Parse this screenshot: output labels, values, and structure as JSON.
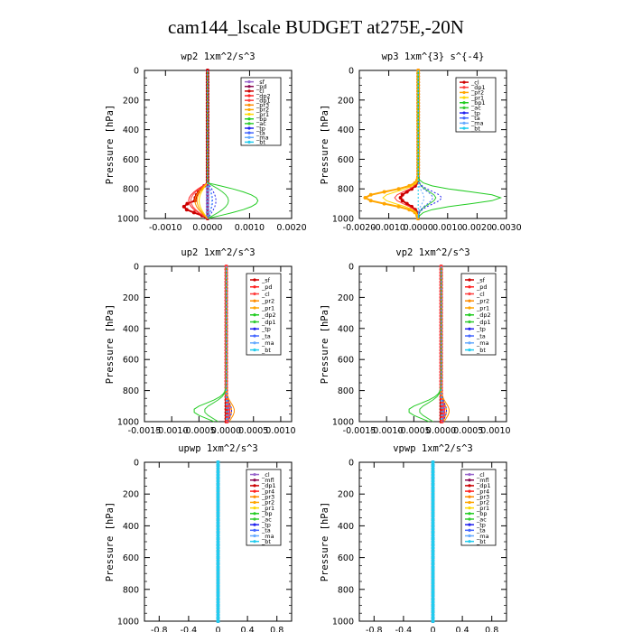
{
  "figure": {
    "title": "cam144_lscale  BUDGET at275E,-20N"
  },
  "chart_data": [
    {
      "type": "line",
      "title": "wp2   1xm^2/s^3",
      "ylabel": "Pressure [hPa]",
      "ylim": [
        1000,
        0
      ],
      "xlim": [
        -0.0015,
        0.002
      ],
      "xticks": [
        -0.001,
        0.0,
        0.001,
        0.002
      ],
      "xticklabels": [
        "-0.0010",
        "0.0000",
        "0.0010",
        "0.0020"
      ],
      "yticks": [
        0,
        200,
        400,
        600,
        800,
        1000
      ],
      "legend": "top-right",
      "series": [
        {
          "name": "_sf",
          "color": "#9966cc",
          "marker": "star"
        },
        {
          "name": "_pd",
          "color": "#8b0a50",
          "marker": "star"
        },
        {
          "name": "_cl",
          "color": "#cc0000",
          "marker": "star"
        },
        {
          "name": "_dp2",
          "color": "#ff2020",
          "marker": "star"
        },
        {
          "name": "_dp1",
          "color": "#ff4040",
          "marker": "star"
        },
        {
          "name": "_pr3",
          "color": "#ff8c00",
          "marker": "star"
        },
        {
          "name": "_pr2",
          "color": "#ffa500",
          "marker": "star"
        },
        {
          "name": "_pr1",
          "color": "#ffd700",
          "marker": "star"
        },
        {
          "name": "_bp",
          "color": "#22cc22",
          "marker": "star"
        },
        {
          "name": "_ac",
          "color": "#33cc33",
          "marker": "star"
        },
        {
          "name": "_tp",
          "color": "#2222ee",
          "marker": "star"
        },
        {
          "name": "_ta",
          "color": "#4466ff",
          "marker": "star"
        },
        {
          "name": "_ma",
          "color": "#66aaff",
          "marker": "star"
        },
        {
          "name": "_bt",
          "color": "#22ccee",
          "marker": "circle"
        }
      ]
    },
    {
      "type": "line",
      "title": "wp3   1xm^{3} s^{-4}",
      "ylabel": "Pressure [hPa]",
      "ylim": [
        1000,
        0
      ],
      "xlim": [
        -0.002,
        0.003
      ],
      "xticks": [
        -0.002,
        -0.001,
        0.0,
        0.001,
        0.002,
        0.003
      ],
      "xticklabels": [
        "-0.0020",
        "-0.0010",
        "0.0000",
        "0.0010",
        "0.0020",
        "0.0030"
      ],
      "yticks": [
        0,
        200,
        400,
        600,
        800,
        1000
      ],
      "legend": "top-right",
      "series": [
        {
          "name": "_cl",
          "color": "#cc0000",
          "marker": "star"
        },
        {
          "name": "_dp1",
          "color": "#ff4040",
          "marker": "star"
        },
        {
          "name": "_pr2",
          "color": "#ffa500",
          "marker": "star"
        },
        {
          "name": "_pr1",
          "color": "#ffd700",
          "marker": "star"
        },
        {
          "name": "_bp1",
          "color": "#22cc22",
          "marker": "star"
        },
        {
          "name": "_ac",
          "color": "#33cc33",
          "marker": "star"
        },
        {
          "name": "_tp",
          "color": "#2222ee",
          "marker": "star"
        },
        {
          "name": "_ta",
          "color": "#4466ff",
          "marker": "star"
        },
        {
          "name": "_ma",
          "color": "#66aaff",
          "marker": "star"
        },
        {
          "name": "_bt",
          "color": "#22ccee",
          "marker": "circle"
        }
      ]
    },
    {
      "type": "line",
      "title": "up2   1xm^2/s^3",
      "ylabel": "Pressure [hPa]",
      "ylim": [
        1000,
        0
      ],
      "xlim": [
        -0.0015,
        0.0012
      ],
      "xticks": [
        -0.0015,
        -0.001,
        -0.0005,
        0.0,
        0.0005,
        0.001
      ],
      "xticklabels": [
        "-0.0015",
        "-0.0010",
        "-0.0005",
        "0.0000",
        "0.0005",
        "0.0010"
      ],
      "yticks": [
        0,
        200,
        400,
        600,
        800,
        1000
      ],
      "legend": "top-right",
      "series": [
        {
          "name": "_sf",
          "color": "#cc0000",
          "marker": "star"
        },
        {
          "name": "_pd",
          "color": "#ff2020",
          "marker": "star"
        },
        {
          "name": "_cl",
          "color": "#ff4040",
          "marker": "star"
        },
        {
          "name": "_pr2",
          "color": "#ff8c00",
          "marker": "star"
        },
        {
          "name": "_pr1",
          "color": "#ffa500",
          "marker": "star"
        },
        {
          "name": "_dp2",
          "color": "#22cc22",
          "marker": "star"
        },
        {
          "name": "_dp1",
          "color": "#33cc33",
          "marker": "star"
        },
        {
          "name": "_tp",
          "color": "#2222ee",
          "marker": "star"
        },
        {
          "name": "_ta",
          "color": "#4466ff",
          "marker": "star"
        },
        {
          "name": "_ma",
          "color": "#66aaff",
          "marker": "star"
        },
        {
          "name": "_bt",
          "color": "#22ccee",
          "marker": "circle"
        }
      ]
    },
    {
      "type": "line",
      "title": "vp2   1xm^2/s^3",
      "ylabel": "Pressure [hPa]",
      "ylim": [
        1000,
        0
      ],
      "xlim": [
        -0.0015,
        0.0012
      ],
      "xticks": [
        -0.0015,
        -0.001,
        -0.0005,
        0.0,
        0.0005,
        0.001
      ],
      "xticklabels": [
        "-0.0015",
        "-0.0010",
        "-0.0005",
        "0.0000",
        "0.0005",
        "0.0010"
      ],
      "yticks": [
        0,
        200,
        400,
        600,
        800,
        1000
      ],
      "legend": "top-right",
      "series": [
        {
          "name": "_sf",
          "color": "#cc0000",
          "marker": "star"
        },
        {
          "name": "_pd",
          "color": "#ff2020",
          "marker": "star"
        },
        {
          "name": "_cl",
          "color": "#ff4040",
          "marker": "star"
        },
        {
          "name": "_pr2",
          "color": "#ff8c00",
          "marker": "star"
        },
        {
          "name": "_pr1",
          "color": "#ffa500",
          "marker": "star"
        },
        {
          "name": "_dp2",
          "color": "#22cc22",
          "marker": "star"
        },
        {
          "name": "_dp1",
          "color": "#33cc33",
          "marker": "star"
        },
        {
          "name": "_tp",
          "color": "#2222ee",
          "marker": "star"
        },
        {
          "name": "_ta",
          "color": "#4466ff",
          "marker": "star"
        },
        {
          "name": "_ma",
          "color": "#66aaff",
          "marker": "star"
        },
        {
          "name": "_bt",
          "color": "#22ccee",
          "marker": "circle"
        }
      ]
    },
    {
      "type": "line",
      "title": "upwp   1xm^2/s^3",
      "ylabel": "Pressure [hPa]",
      "ylim": [
        1000,
        0
      ],
      "xlim": [
        -1.0,
        1.0
      ],
      "xticks": [
        -0.8,
        -0.4,
        0.0,
        0.4,
        0.8
      ],
      "xticklabels": [
        "-0.8",
        "-0.4",
        "0",
        "0.4",
        "0.8"
      ],
      "yticks": [
        0,
        200,
        400,
        600,
        800,
        1000
      ],
      "legend": "top-right",
      "series": [
        {
          "name": "_cl",
          "color": "#9966cc",
          "marker": "star"
        },
        {
          "name": "_mfl",
          "color": "#8b0a50",
          "marker": "star"
        },
        {
          "name": "_dp1",
          "color": "#cc0000",
          "marker": "star"
        },
        {
          "name": "_pr4",
          "color": "#ff2020",
          "marker": "star"
        },
        {
          "name": "_pr3",
          "color": "#ff8c00",
          "marker": "star"
        },
        {
          "name": "_pr2",
          "color": "#ffa500",
          "marker": "star"
        },
        {
          "name": "_pr1",
          "color": "#ffd700",
          "marker": "star"
        },
        {
          "name": "_bp",
          "color": "#22cc22",
          "marker": "star"
        },
        {
          "name": "_ac",
          "color": "#33cc33",
          "marker": "star"
        },
        {
          "name": "_tp",
          "color": "#2222ee",
          "marker": "star"
        },
        {
          "name": "_ta",
          "color": "#4466ff",
          "marker": "star"
        },
        {
          "name": "_ma",
          "color": "#66aaff",
          "marker": "star"
        },
        {
          "name": "_bt",
          "color": "#22ccee",
          "marker": "circle"
        }
      ]
    },
    {
      "type": "line",
      "title": "vpwp   1xm^2/s^3",
      "ylabel": "Pressure [hPa]",
      "ylim": [
        1000,
        0
      ],
      "xlim": [
        -1.0,
        1.0
      ],
      "xticks": [
        -0.8,
        -0.4,
        0.0,
        0.4,
        0.8
      ],
      "xticklabels": [
        "-0.8",
        "-0.4",
        "0",
        "0.4",
        "0.8"
      ],
      "yticks": [
        0,
        200,
        400,
        600,
        800,
        1000
      ],
      "legend": "top-right",
      "series": [
        {
          "name": "_cl",
          "color": "#9966cc",
          "marker": "star"
        },
        {
          "name": "_mfl",
          "color": "#8b0a50",
          "marker": "star"
        },
        {
          "name": "_dp1",
          "color": "#cc0000",
          "marker": "star"
        },
        {
          "name": "_pr4",
          "color": "#ff2020",
          "marker": "star"
        },
        {
          "name": "_pr3",
          "color": "#ff8c00",
          "marker": "star"
        },
        {
          "name": "_pr2",
          "color": "#ffa500",
          "marker": "star"
        },
        {
          "name": "_pr1",
          "color": "#ffd700",
          "marker": "star"
        },
        {
          "name": "_bp",
          "color": "#22cc22",
          "marker": "star"
        },
        {
          "name": "_ac",
          "color": "#33cc33",
          "marker": "star"
        },
        {
          "name": "_tp",
          "color": "#2222ee",
          "marker": "star"
        },
        {
          "name": "_ta",
          "color": "#4466ff",
          "marker": "star"
        },
        {
          "name": "_ma",
          "color": "#66aaff",
          "marker": "star"
        },
        {
          "name": "_bt",
          "color": "#22ccee",
          "marker": "circle"
        }
      ]
    }
  ]
}
